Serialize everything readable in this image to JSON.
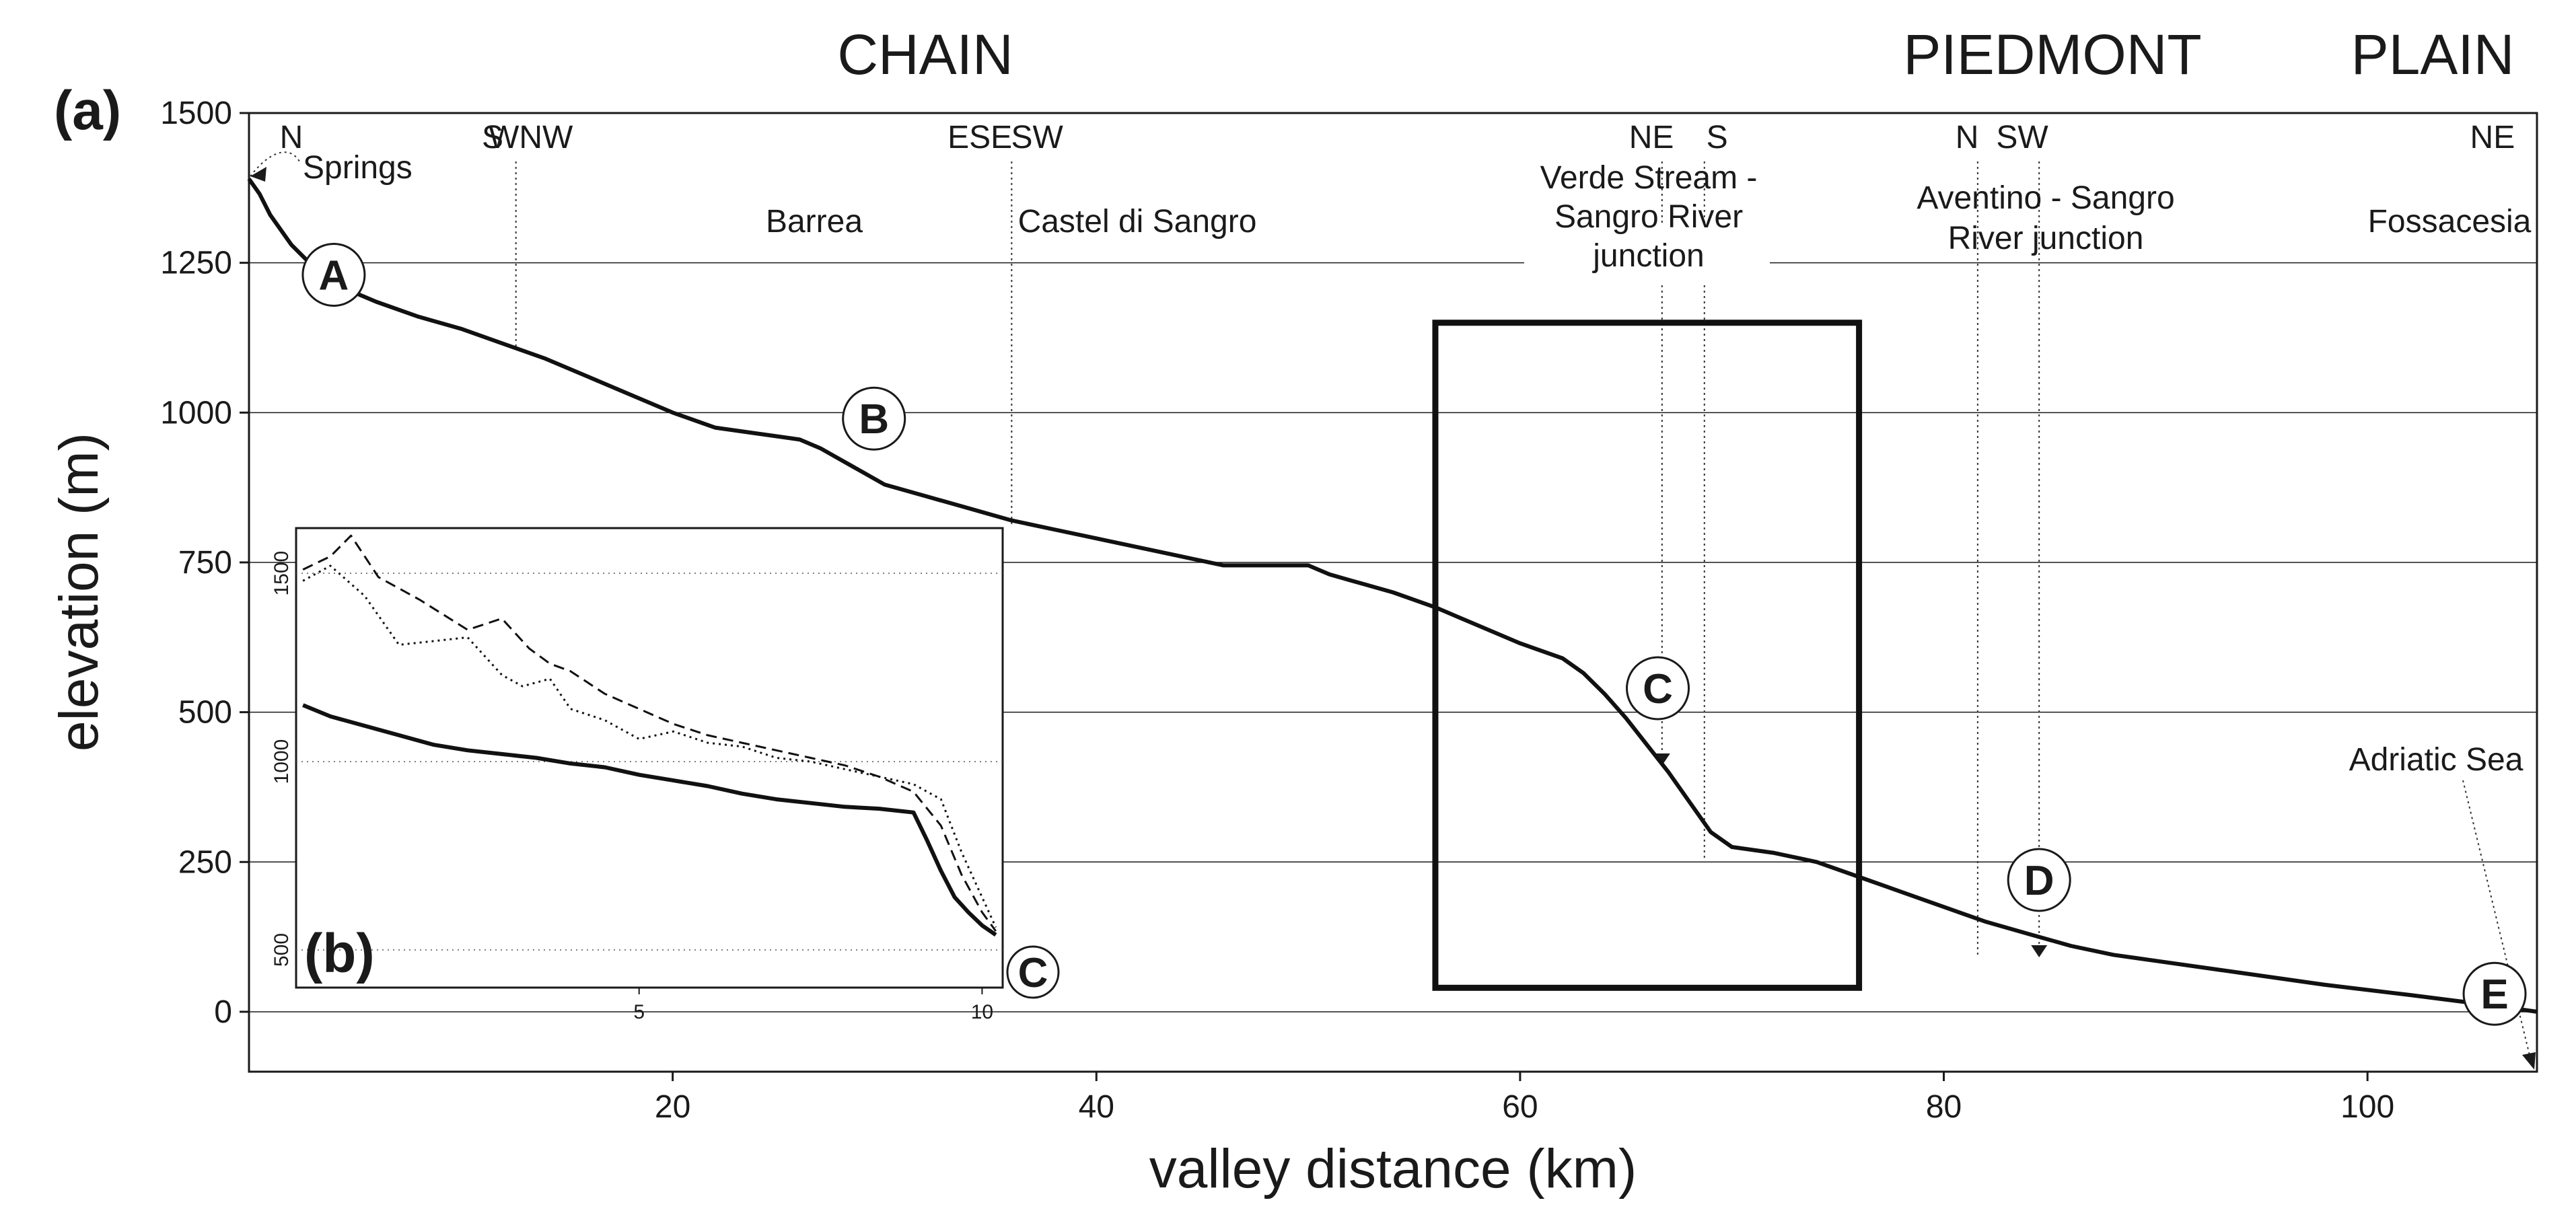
{
  "regions": [
    "CHAIN",
    "PIEDMONT",
    "PLAIN"
  ],
  "panel_a_label": "(a)",
  "panel_b_label": "(b)",
  "chart_data": [
    {
      "type": "line",
      "panel": "(a)",
      "xlabel": "valley distance (km)",
      "ylabel": "elevation (m)",
      "xlim": [
        0,
        108
      ],
      "ylim": [
        -100,
        1500
      ],
      "x_ticks": [
        20,
        40,
        60,
        80,
        100
      ],
      "y_ticks": [
        0,
        250,
        500,
        750,
        1000,
        1250,
        1500
      ],
      "grid": "horizontal",
      "series": [
        {
          "x": [
            0,
            0.5,
            1,
            2,
            3,
            4,
            5,
            6,
            8,
            10,
            12,
            14,
            16,
            18,
            20,
            22,
            24,
            25,
            26,
            27,
            28,
            29,
            30,
            32,
            34,
            36,
            38,
            40,
            42,
            44,
            46,
            48,
            50,
            51,
            52,
            54,
            56,
            58,
            60,
            62,
            63,
            64,
            65,
            66,
            67,
            68,
            69,
            70,
            72,
            74,
            76,
            78,
            80,
            82,
            84,
            86,
            88,
            90,
            94,
            98,
            102,
            106,
            108
          ],
          "y": [
            1390,
            1365,
            1330,
            1280,
            1245,
            1220,
            1200,
            1185,
            1160,
            1140,
            1115,
            1090,
            1060,
            1030,
            1000,
            975,
            965,
            960,
            955,
            940,
            920,
            900,
            880,
            860,
            840,
            820,
            805,
            790,
            775,
            760,
            745,
            745,
            745,
            730,
            720,
            700,
            675,
            645,
            615,
            590,
            565,
            530,
            490,
            445,
            400,
            350,
            300,
            275,
            265,
            250,
            225,
            200,
            175,
            150,
            130,
            110,
            95,
            85,
            65,
            45,
            28,
            10,
            0
          ]
        }
      ],
      "labels": [
        {
          "text": "N",
          "x": 2
        },
        {
          "text": "S",
          "x": 11.5
        },
        {
          "text": "WNW",
          "x": 13.3
        },
        {
          "text": "ESE",
          "x": 34.5
        },
        {
          "text": "SW",
          "x": 37.2
        },
        {
          "text": "NE",
          "x": 66.2
        },
        {
          "text": "S",
          "x": 69.3
        },
        {
          "text": "N",
          "x": 81.1
        },
        {
          "text": "SW",
          "x": 83.7
        },
        {
          "text": "NE",
          "x": 105.9
        }
      ],
      "places": [
        {
          "text": "Springs"
        },
        {
          "text": "Barrea"
        },
        {
          "text": "Castel di Sangro"
        },
        {
          "text": "Verde Stream -"
        },
        {
          "text": "Sangro River"
        },
        {
          "text": "junction"
        },
        {
          "text": "Aventino - Sangro"
        },
        {
          "text": "River junction"
        },
        {
          "text": "Fossacesia"
        },
        {
          "text": "Adriatic Sea"
        }
      ],
      "points": [
        {
          "label": "A",
          "x": 4,
          "y": 1230
        },
        {
          "label": "B",
          "x": 29.5,
          "y": 990
        },
        {
          "label": "C",
          "x": 66.5,
          "y": 540
        },
        {
          "label": "D",
          "x": 84.5,
          "y": 220
        },
        {
          "label": "E",
          "x": 106,
          "y": 30
        }
      ],
      "box_x": [
        56,
        76
      ],
      "box_y": [
        40,
        1150
      ]
    },
    {
      "type": "line",
      "panel": "(b)",
      "end_label": "C",
      "xlim": [
        0,
        10.3
      ],
      "ylim": [
        400,
        1620
      ],
      "x_ticks": [
        5,
        10
      ],
      "y_ticks": [
        500,
        1000,
        1500
      ],
      "series": [
        {
          "style": "solid",
          "x": [
            0.1,
            0.5,
            1,
            1.5,
            2,
            2.5,
            3,
            3.5,
            4,
            4.5,
            5,
            5.5,
            6,
            6.5,
            7,
            7.5,
            8,
            8.5,
            9,
            9.2,
            9.4,
            9.6,
            9.8,
            10,
            10.2
          ],
          "y": [
            1150,
            1120,
            1095,
            1070,
            1045,
            1030,
            1020,
            1010,
            995,
            985,
            965,
            950,
            935,
            915,
            900,
            890,
            880,
            875,
            865,
            790,
            710,
            640,
            600,
            565,
            540
          ]
        },
        {
          "style": "dashed",
          "x": [
            0.1,
            0.5,
            0.8,
            1.2,
            1.8,
            2.5,
            3,
            3.4,
            3.7,
            4,
            4.5,
            5,
            5.5,
            6,
            6.5,
            7,
            7.5,
            8,
            8.5,
            9,
            9.4,
            9.7,
            10,
            10.2
          ],
          "y": [
            1510,
            1545,
            1600,
            1490,
            1430,
            1350,
            1380,
            1300,
            1260,
            1240,
            1180,
            1140,
            1100,
            1070,
            1050,
            1030,
            1010,
            990,
            960,
            920,
            830,
            700,
            600,
            550
          ]
        },
        {
          "style": "dotted",
          "x": [
            0.1,
            0.5,
            1,
            1.5,
            2,
            2.5,
            3,
            3.3,
            3.7,
            4,
            4.5,
            5,
            5.5,
            6,
            6.5,
            7,
            7.5,
            8,
            8.5,
            9,
            9.4,
            9.7,
            10,
            10.2
          ],
          "y": [
            1480,
            1520,
            1440,
            1310,
            1320,
            1330,
            1230,
            1200,
            1220,
            1140,
            1110,
            1060,
            1080,
            1050,
            1040,
            1010,
            1000,
            980,
            960,
            940,
            900,
            760,
            640,
            560
          ]
        }
      ]
    }
  ]
}
